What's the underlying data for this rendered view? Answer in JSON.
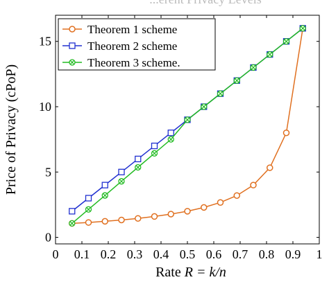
{
  "chart_data": {
    "type": "line",
    "top_caption": "...erent Privacy Levels",
    "xlabel_text": "Rate ",
    "xlabel_math": "R = k/n",
    "ylabel": "Price of Privacy (cPoP)",
    "xlim": [
      0,
      1
    ],
    "ylim": [
      -0.5,
      17
    ],
    "x_ticks": [
      0,
      0.1,
      0.2,
      0.3,
      0.4,
      0.5,
      0.6,
      0.7,
      0.8,
      0.9,
      1
    ],
    "x_tick_labels": [
      "0",
      "0.1",
      "0.2",
      "0.3",
      "0.4",
      "0.5",
      "0.6",
      "0.7",
      "0.8",
      "0.9",
      "1"
    ],
    "y_ticks": [
      0,
      5,
      10,
      15
    ],
    "y_tick_labels": [
      "0",
      "5",
      "10",
      "15"
    ],
    "legend_position": "top-left",
    "grid": false,
    "series": [
      {
        "name": "Theorem 1 scheme",
        "color": "#e07020",
        "marker": "circle",
        "x": [
          0.0625,
          0.125,
          0.1875,
          0.25,
          0.3125,
          0.375,
          0.4375,
          0.5,
          0.5625,
          0.625,
          0.6875,
          0.75,
          0.8125,
          0.875,
          0.9375
        ],
        "y": [
          1.07,
          1.14,
          1.23,
          1.33,
          1.45,
          1.6,
          1.78,
          2.0,
          2.29,
          2.67,
          3.2,
          4.0,
          5.33,
          8.0,
          16.0
        ]
      },
      {
        "name": "Theorem 2 scheme",
        "color": "#2030d0",
        "marker": "square",
        "x": [
          0.0625,
          0.125,
          0.1875,
          0.25,
          0.3125,
          0.375,
          0.4375,
          0.5,
          0.5625,
          0.625,
          0.6875,
          0.75,
          0.8125,
          0.875,
          0.9375
        ],
        "y": [
          2,
          3,
          4,
          5,
          6,
          7,
          8,
          9,
          10,
          11,
          12,
          13,
          14,
          15,
          16
        ]
      },
      {
        "name": "Theorem 3 scheme.",
        "color": "#22bb22",
        "marker": "circle-x",
        "x": [
          0.0625,
          0.125,
          0.1875,
          0.25,
          0.3125,
          0.375,
          0.4375,
          0.5,
          0.5625,
          0.625,
          0.6875,
          0.75,
          0.8125,
          0.875,
          0.9375
        ],
        "y": [
          1.07,
          2.14,
          3.21,
          4.29,
          5.36,
          6.43,
          7.5,
          9,
          10,
          11,
          12,
          13,
          14,
          15,
          16
        ]
      }
    ]
  }
}
